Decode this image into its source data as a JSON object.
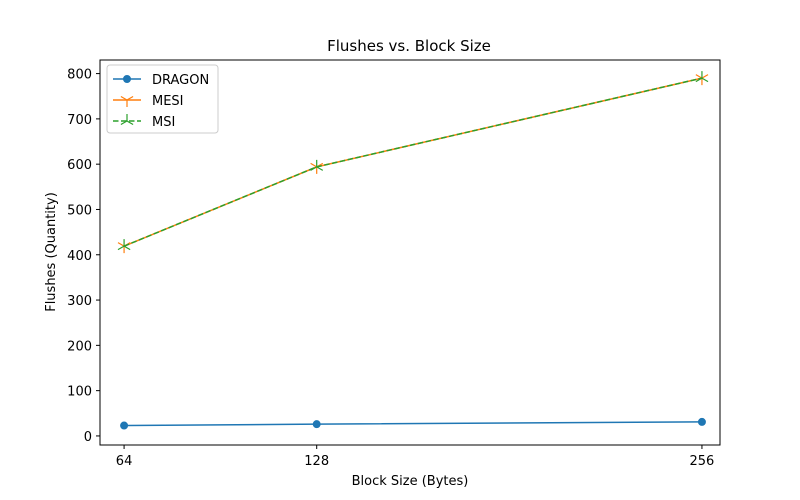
{
  "chart_data": {
    "type": "line",
    "title": "Flushes vs. Block Size",
    "xlabel": "Block Size (Bytes)",
    "ylabel": "Flushes (Quantity)",
    "x": [
      64,
      128,
      256
    ],
    "x_ticks": [
      "64",
      "128",
      "256"
    ],
    "xlim": [
      56,
      262
    ],
    "ylim": [
      -20,
      830
    ],
    "y_ticks": [
      0,
      100,
      200,
      300,
      400,
      500,
      600,
      700,
      800
    ],
    "grid": false,
    "legend_position": "top-left",
    "series": [
      {
        "name": "DRAGON",
        "values": [
          23,
          26,
          31
        ],
        "color": "#1f77b4",
        "marker": "circle",
        "line_style": "solid"
      },
      {
        "name": "MESI",
        "values": [
          419,
          594,
          790
        ],
        "color": "#ff7f0e",
        "marker": "tri_down",
        "line_style": "solid"
      },
      {
        "name": "MSI",
        "values": [
          419,
          594,
          790
        ],
        "color": "#2ca02c",
        "marker": "tri_up",
        "line_style": "dashed"
      }
    ]
  }
}
